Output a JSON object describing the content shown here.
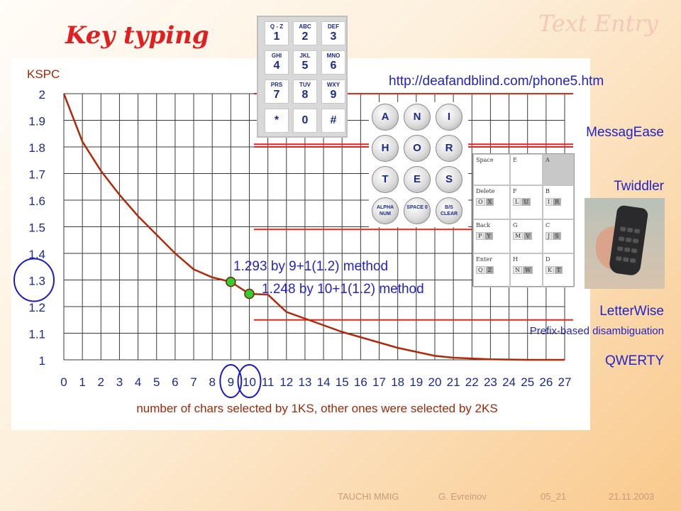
{
  "slide": {
    "title": "Key typing",
    "section": "Text Entry",
    "url": "http://deafandblind.com/phone5.htm",
    "methods": [
      {
        "name": "MessagEase"
      },
      {
        "name": "Twiddler"
      },
      {
        "name": "LetterWise"
      },
      {
        "name": "Prefix-based disambiguation"
      },
      {
        "name": "QWERTY"
      }
    ],
    "footer": {
      "group": "TAUCHI MMIG",
      "author": "G. Evreinov",
      "slide_no": "05_21",
      "date": "21.11.2003"
    },
    "accent_colors": {
      "title": "#e02020",
      "text": "#2323c8",
      "curve": "#b02a0a",
      "marker": "#33cc33",
      "reference": "#e0281e"
    }
  },
  "keypad": {
    "keys": [
      {
        "letters": "Q - Z",
        "num": "1"
      },
      {
        "letters": "ABC",
        "num": "2"
      },
      {
        "letters": "DEF",
        "num": "3"
      },
      {
        "letters": "GHI",
        "num": "4"
      },
      {
        "letters": "JKL",
        "num": "5"
      },
      {
        "letters": "MNO",
        "num": "6"
      },
      {
        "letters": "PRS",
        "num": "7"
      },
      {
        "letters": "TUV",
        "num": "8"
      },
      {
        "letters": "WXY",
        "num": "9"
      },
      {
        "letters": "",
        "num": "*"
      },
      {
        "letters": "",
        "num": "0"
      },
      {
        "letters": "",
        "num": "#"
      }
    ]
  },
  "messagease": {
    "keys": [
      {
        "label": "A"
      },
      {
        "label": "N"
      },
      {
        "label": "I"
      },
      {
        "label": "H"
      },
      {
        "label": "O"
      },
      {
        "label": "R"
      },
      {
        "label": "T"
      },
      {
        "label": "E"
      },
      {
        "label": "S"
      },
      {
        "label": "ALPHA NUM"
      },
      {
        "label": "SPACE 0"
      },
      {
        "label": "B/S CLEAR"
      }
    ]
  },
  "twiddler": {
    "cells": [
      {
        "title": "Space",
        "subs": [],
        "dark": false
      },
      {
        "title": "E",
        "subs": [],
        "dark": false
      },
      {
        "title": "A",
        "subs": [],
        "dark": true
      },
      {
        "title": "Delete",
        "subs": [
          "O",
          "X"
        ],
        "dark": false
      },
      {
        "title": "F",
        "subs": [
          "L",
          "U"
        ],
        "dark": false
      },
      {
        "title": "B",
        "subs": [
          "I",
          "R"
        ],
        "dark": false
      },
      {
        "title": "Back",
        "subs": [
          "P",
          "Y"
        ],
        "dark": false
      },
      {
        "title": "G",
        "subs": [
          "M",
          "V"
        ],
        "dark": false
      },
      {
        "title": "C",
        "subs": [
          "J",
          "S"
        ],
        "dark": false
      },
      {
        "title": "Enter",
        "subs": [
          "Q",
          "Z"
        ],
        "dark": false
      },
      {
        "title": "H",
        "subs": [
          "N",
          "W"
        ],
        "dark": false
      },
      {
        "title": "D",
        "subs": [
          "K",
          "T"
        ],
        "dark": false
      }
    ]
  },
  "chart_data": {
    "type": "line",
    "ylabel": "KSPC",
    "xlabel": "number of chars selected by 1KS, other ones were selected by 2KS",
    "ylim": [
      1,
      2
    ],
    "xlim": [
      0,
      27
    ],
    "yticks": [
      "1",
      "1.1",
      "1.2",
      "1.3",
      "1.4",
      "1.5",
      "1.6",
      "1.7",
      "1.8",
      "1.9",
      "2"
    ],
    "xticks": [
      "0",
      "1",
      "2",
      "3",
      "4",
      "5",
      "6",
      "7",
      "8",
      "9",
      "10",
      "11",
      "12",
      "13",
      "14",
      "15",
      "16",
      "17",
      "18",
      "19",
      "20",
      "21",
      "22",
      "23",
      "24",
      "25",
      "26",
      "27"
    ],
    "grid": true,
    "series": [
      {
        "x": [
          0,
          1,
          2,
          3,
          4,
          5,
          6,
          7,
          8,
          9,
          10,
          11,
          12,
          13,
          14,
          15,
          16,
          17,
          18,
          19,
          20,
          21,
          22,
          23,
          24,
          25,
          26,
          27
        ],
        "values": [
          2.0,
          1.82,
          1.71,
          1.62,
          1.54,
          1.47,
          1.4,
          1.34,
          1.31,
          1.293,
          1.248,
          1.245,
          1.18,
          1.155,
          1.13,
          1.105,
          1.085,
          1.065,
          1.045,
          1.03,
          1.015,
          1.008,
          1.005,
          1.002,
          1.001,
          1.0,
          1.0,
          1.0
        ]
      }
    ],
    "markers": [
      {
        "x": 9,
        "y": 1.293,
        "label": "1.293 by 9+1(1.2) method"
      },
      {
        "x": 10,
        "y": 1.248,
        "label": "1.248 by 10+1(1.2) method"
      }
    ],
    "reference_lines": [
      {
        "y": 2.0,
        "method": "MessagEase"
      },
      {
        "y": 1.81,
        "method": "MessagEase"
      },
      {
        "y": 1.8,
        "method": "Twiddler"
      },
      {
        "y": 1.49,
        "method": "LetterWise"
      },
      {
        "y": 1.15,
        "method": "Prefix-based disambiguation"
      }
    ],
    "highlighted_ticks": [
      "1.3",
      "9",
      "10"
    ]
  }
}
